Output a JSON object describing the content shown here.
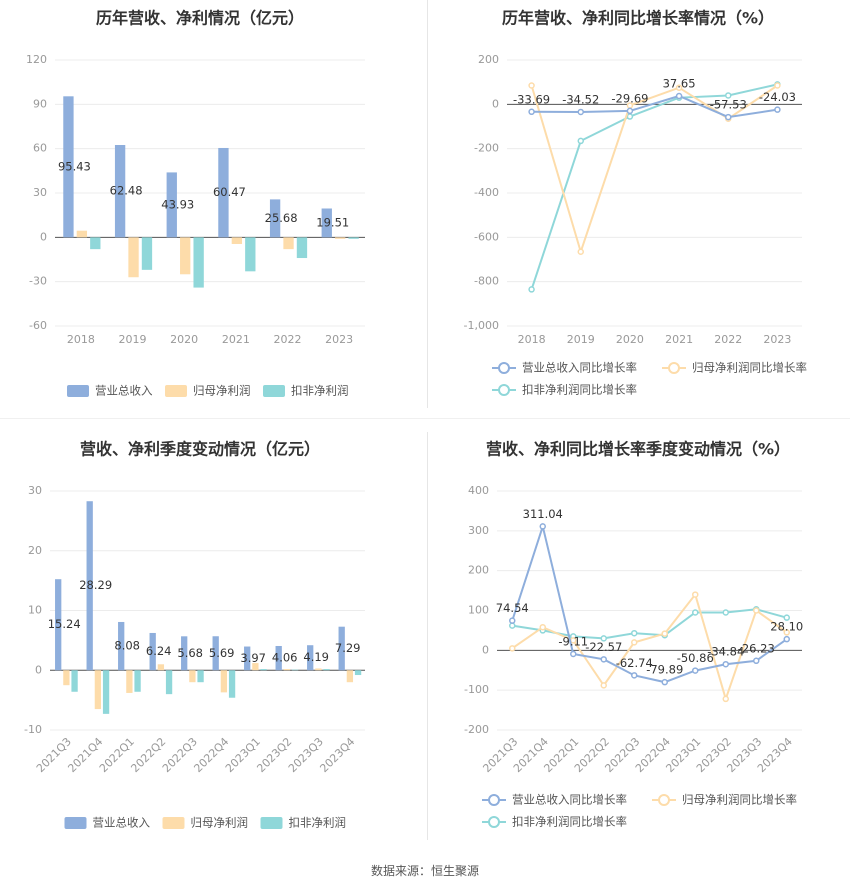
{
  "chart_data": [
    {
      "type": "bar",
      "title": "历年营收、净利情况（亿元）",
      "categories": [
        "2018",
        "2019",
        "2020",
        "2021",
        "2022",
        "2023"
      ],
      "ylim": [
        -60,
        120
      ],
      "yticks": [
        -60,
        -30,
        0,
        30,
        60,
        90,
        120
      ],
      "legend_position": "bottom",
      "series": [
        {
          "name": "营业总收入",
          "color": "#8eaedc",
          "values": [
            95.43,
            62.48,
            43.93,
            60.47,
            25.68,
            19.51
          ],
          "labels": [
            "95.43",
            "62.48",
            "43.93",
            "60.47",
            "25.68",
            "19.51"
          ]
        },
        {
          "name": "归母净利润",
          "color": "#fddcaa",
          "values": [
            4.5,
            -27,
            -25,
            -4.5,
            -8,
            -1
          ]
        },
        {
          "name": "扣非净利润",
          "color": "#8fd7d9",
          "values": [
            -8,
            -22,
            -34,
            -23,
            -14,
            -1
          ]
        }
      ]
    },
    {
      "type": "line",
      "title": "历年营收、净利同比增长率情况（%）",
      "categories": [
        "2018",
        "2019",
        "2020",
        "2021",
        "2022",
        "2023"
      ],
      "ylim": [
        -1000,
        200
      ],
      "yticks": [
        -1000,
        -800,
        -600,
        -400,
        -200,
        0,
        200
      ],
      "ytick_labels": [
        "-1,000",
        "-800",
        "-600",
        "-400",
        "-200",
        "0",
        "200"
      ],
      "legend_position": "bottom",
      "series": [
        {
          "name": "营业总收入同比增长率",
          "color": "#8eaedc",
          "values": [
            -33.69,
            -34.52,
            -29.69,
            37.65,
            -57.53,
            -24.03
          ],
          "labels": [
            "-33.69",
            "-34.52",
            "-29.69",
            "37.65",
            "-57.53",
            "-24.03"
          ]
        },
        {
          "name": "归母净利润同比增长率",
          "color": "#fddcaa",
          "values": [
            85,
            -665,
            -5,
            75,
            -65,
            85
          ]
        },
        {
          "name": "扣非净利润同比增长率",
          "color": "#8fd7d9",
          "values": [
            -835,
            -165,
            -55,
            30,
            40,
            90
          ]
        }
      ]
    },
    {
      "type": "bar",
      "title": "营收、净利季度变动情况（亿元）",
      "categories": [
        "2021Q3",
        "2021Q4",
        "2022Q1",
        "2022Q2",
        "2022Q3",
        "2022Q4",
        "2023Q1",
        "2023Q2",
        "2023Q3",
        "2023Q4"
      ],
      "ylim": [
        -10,
        30
      ],
      "yticks": [
        -10,
        0,
        10,
        20,
        30
      ],
      "legend_position": "bottom",
      "series": [
        {
          "name": "营业总收入",
          "color": "#8eaedc",
          "values": [
            15.24,
            28.29,
            8.08,
            6.24,
            5.68,
            5.69,
            3.97,
            4.06,
            4.19,
            7.29
          ],
          "labels": [
            "15.24",
            "28.29",
            "8.08",
            "6.24",
            "5.68",
            "5.69",
            "3.97",
            "4.06",
            "4.19",
            "7.29"
          ]
        },
        {
          "name": "归母净利润",
          "color": "#fddcaa",
          "values": [
            -2.5,
            -6.5,
            -3.8,
            1.0,
            -2.0,
            -3.7,
            1.2,
            0.2,
            0.3,
            -2.0
          ]
        },
        {
          "name": "扣非净利润",
          "color": "#8fd7d9",
          "values": [
            -3.6,
            -7.3,
            -3.6,
            -4.0,
            -2.0,
            -4.6,
            0.2,
            0.1,
            0.2,
            -0.8
          ]
        }
      ]
    },
    {
      "type": "line",
      "title": "营收、净利同比增长率季度变动情况（%）",
      "categories": [
        "2021Q3",
        "2021Q4",
        "2022Q1",
        "2022Q2",
        "2022Q3",
        "2022Q4",
        "2023Q1",
        "2023Q2",
        "2023Q3",
        "2023Q4"
      ],
      "ylim": [
        -200,
        400
      ],
      "yticks": [
        -200,
        -100,
        0,
        100,
        200,
        300,
        400
      ],
      "legend_position": "bottom",
      "series": [
        {
          "name": "营业总收入同比增长率",
          "color": "#8eaedc",
          "values": [
            74.54,
            311.04,
            -9.11,
            -22.57,
            -62.74,
            -79.89,
            -50.86,
            -34.84,
            -26.23,
            28.1
          ],
          "labels": [
            "74.54",
            "311.04",
            "-9.11",
            "-22.57",
            "-62.74",
            "-79.89",
            "-50.86",
            "-34.84",
            "-26.23",
            "28.10"
          ]
        },
        {
          "name": "归母净利润同比增长率",
          "color": "#fddcaa",
          "values": [
            5,
            58,
            25,
            -88,
            20,
            42,
            140,
            -122,
            100,
            45
          ]
        },
        {
          "name": "扣非净利润同比增长率",
          "color": "#8fd7d9",
          "values": [
            62,
            50,
            35,
            30,
            43,
            38,
            95,
            95,
            103,
            82
          ]
        }
      ]
    }
  ],
  "source_text": "数据来源：恒生聚源"
}
